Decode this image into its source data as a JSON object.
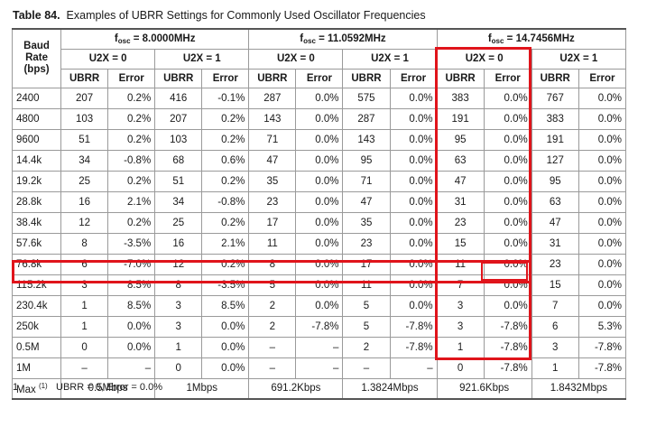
{
  "caption": {
    "label": "Table 84.",
    "text": "Examples of UBRR Settings for Commonly Used Oscillator Frequencies"
  },
  "header": {
    "baud_rate_line1": "Baud",
    "baud_rate_line2": "Rate",
    "baud_rate_line3": "(bps)",
    "osc_prefix": "f",
    "osc_subscript": "osc",
    "oscillators": [
      "= 8.0000MHz",
      "= 11.0592MHz",
      "= 14.7456MHz"
    ],
    "modes": [
      "U2X = 0",
      "U2X = 1",
      "U2X = 0",
      "U2X = 1",
      "U2X = 0",
      "U2X = 1"
    ],
    "col_ubrr": "UBRR",
    "col_error": "Error"
  },
  "rows": [
    {
      "baud": "2400",
      "cells": [
        "207",
        "0.2%",
        "416",
        "-0.1%",
        "287",
        "0.0%",
        "575",
        "0.0%",
        "383",
        "0.0%",
        "767",
        "0.0%"
      ]
    },
    {
      "baud": "4800",
      "cells": [
        "103",
        "0.2%",
        "207",
        "0.2%",
        "143",
        "0.0%",
        "287",
        "0.0%",
        "191",
        "0.0%",
        "383",
        "0.0%"
      ]
    },
    {
      "baud": "9600",
      "cells": [
        "51",
        "0.2%",
        "103",
        "0.2%",
        "71",
        "0.0%",
        "143",
        "0.0%",
        "95",
        "0.0%",
        "191",
        "0.0%"
      ]
    },
    {
      "baud": "14.4k",
      "cells": [
        "34",
        "-0.8%",
        "68",
        "0.6%",
        "47",
        "0.0%",
        "95",
        "0.0%",
        "63",
        "0.0%",
        "127",
        "0.0%"
      ]
    },
    {
      "baud": "19.2k",
      "cells": [
        "25",
        "0.2%",
        "51",
        "0.2%",
        "35",
        "0.0%",
        "71",
        "0.0%",
        "47",
        "0.0%",
        "95",
        "0.0%"
      ]
    },
    {
      "baud": "28.8k",
      "cells": [
        "16",
        "2.1%",
        "34",
        "-0.8%",
        "23",
        "0.0%",
        "47",
        "0.0%",
        "31",
        "0.0%",
        "63",
        "0.0%"
      ]
    },
    {
      "baud": "38.4k",
      "cells": [
        "12",
        "0.2%",
        "25",
        "0.2%",
        "17",
        "0.0%",
        "35",
        "0.0%",
        "23",
        "0.0%",
        "47",
        "0.0%"
      ]
    },
    {
      "baud": "57.6k",
      "cells": [
        "8",
        "-3.5%",
        "16",
        "2.1%",
        "11",
        "0.0%",
        "23",
        "0.0%",
        "15",
        "0.0%",
        "31",
        "0.0%"
      ]
    },
    {
      "baud": "76.8k",
      "cells": [
        "6",
        "-7.0%",
        "12",
        "0.2%",
        "8",
        "0.0%",
        "17",
        "0.0%",
        "11",
        "0.0%",
        "23",
        "0.0%"
      ]
    },
    {
      "baud": "115.2k",
      "cells": [
        "3",
        "8.5%",
        "8",
        "-3.5%",
        "5",
        "0.0%",
        "11",
        "0.0%",
        "7",
        "0.0%",
        "15",
        "0.0%"
      ]
    },
    {
      "baud": "230.4k",
      "cells": [
        "1",
        "8.5%",
        "3",
        "8.5%",
        "2",
        "0.0%",
        "5",
        "0.0%",
        "3",
        "0.0%",
        "7",
        "0.0%"
      ]
    },
    {
      "baud": "250k",
      "cells": [
        "1",
        "0.0%",
        "3",
        "0.0%",
        "2",
        "-7.8%",
        "5",
        "-7.8%",
        "3",
        "-7.8%",
        "6",
        "5.3%"
      ]
    },
    {
      "baud": "0.5M",
      "cells": [
        "0",
        "0.0%",
        "1",
        "0.0%",
        "–",
        "–",
        "2",
        "-7.8%",
        "1",
        "-7.8%",
        "3",
        "-7.8%"
      ]
    },
    {
      "baud": "1M",
      "cells": [
        "–",
        "–",
        "0",
        "0.0%",
        "–",
        "–",
        "–",
        "–",
        "0",
        "-7.8%",
        "1",
        "-7.8%"
      ]
    }
  ],
  "max_row": {
    "label": "Max",
    "footnote_ref": "(1)",
    "values": [
      "0.5Mbps",
      "1Mbps",
      "691.2Kbps",
      "1.3824Mbps",
      "921.6Kbps",
      "1.8432Mbps"
    ]
  },
  "footnote": {
    "number": "1.",
    "text": "UBRR = 0, Error = 0.0%"
  },
  "highlight_color": "#e0141b"
}
